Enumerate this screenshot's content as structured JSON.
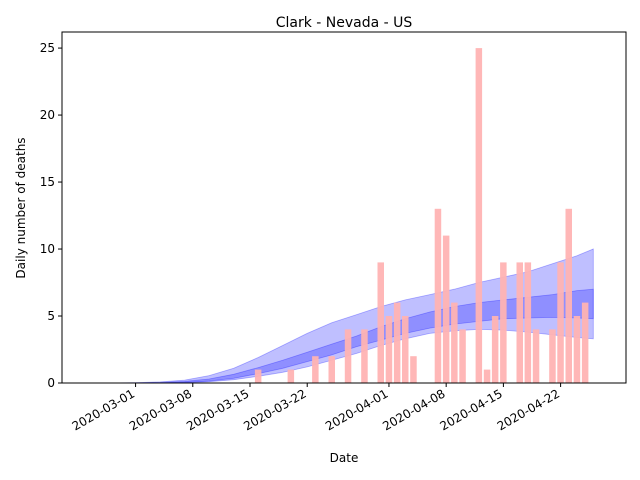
{
  "chart_data": {
    "type": "bar",
    "title": "Clark - Nevada - US",
    "xlabel": "Date",
    "ylabel": "Daily number of deaths",
    "xlim": [
      "2020-02-21",
      "2020-04-30"
    ],
    "ylim": [
      0,
      26.2
    ],
    "yticks": [
      0,
      5,
      10,
      15,
      20,
      25
    ],
    "xticks": [
      "2020-03-01",
      "2020-03-08",
      "2020-03-15",
      "2020-03-22",
      "2020-04-01",
      "2020-04-08",
      "2020-04-15",
      "2020-04-22"
    ],
    "grid": false,
    "bar_color": "#ffb3b3",
    "bars": {
      "dates": [
        "2020-03-16",
        "2020-03-20",
        "2020-03-23",
        "2020-03-25",
        "2020-03-27",
        "2020-03-29",
        "2020-03-31",
        "2020-04-01",
        "2020-04-02",
        "2020-04-03",
        "2020-04-04",
        "2020-04-07",
        "2020-04-08",
        "2020-04-09",
        "2020-04-10",
        "2020-04-12",
        "2020-04-13",
        "2020-04-14",
        "2020-04-15",
        "2020-04-17",
        "2020-04-18",
        "2020-04-19",
        "2020-04-21",
        "2020-04-22",
        "2020-04-23",
        "2020-04-24",
        "2020-04-25"
      ],
      "values": [
        1,
        1,
        2,
        2,
        4,
        4,
        9,
        5,
        6,
        5,
        2,
        13,
        11,
        6,
        4,
        25,
        1,
        5,
        9,
        9,
        9,
        4,
        4,
        9,
        13,
        5,
        6
      ]
    },
    "model": {
      "color": "#0000ff",
      "dates": [
        "2020-02-27",
        "2020-03-01",
        "2020-03-04",
        "2020-03-07",
        "2020-03-10",
        "2020-03-13",
        "2020-03-16",
        "2020-03-19",
        "2020-03-22",
        "2020-03-25",
        "2020-03-28",
        "2020-03-31",
        "2020-04-03",
        "2020-04-06",
        "2020-04-09",
        "2020-04-12",
        "2020-04-15",
        "2020-04-18",
        "2020-04-21",
        "2020-04-24",
        "2020-04-26"
      ],
      "outer_upper": [
        0,
        0.02,
        0.08,
        0.22,
        0.55,
        1.1,
        1.9,
        2.8,
        3.7,
        4.5,
        5.1,
        5.7,
        6.2,
        6.6,
        7.0,
        7.5,
        7.9,
        8.3,
        8.9,
        9.5,
        10.0
      ],
      "outer_lower": [
        0,
        0,
        0,
        0.03,
        0.1,
        0.25,
        0.5,
        0.8,
        1.2,
        1.7,
        2.2,
        2.8,
        3.3,
        3.7,
        3.9,
        4.0,
        3.95,
        3.8,
        3.6,
        3.4,
        3.3
      ],
      "inner_upper": [
        0,
        0.01,
        0.04,
        0.12,
        0.3,
        0.65,
        1.15,
        1.7,
        2.3,
        2.9,
        3.5,
        4.2,
        4.8,
        5.3,
        5.7,
        6.0,
        6.2,
        6.4,
        6.6,
        6.9,
        7.0
      ],
      "inner_lower": [
        0,
        0,
        0.01,
        0.05,
        0.15,
        0.35,
        0.7,
        1.1,
        1.6,
        2.1,
        2.7,
        3.2,
        3.7,
        4.1,
        4.4,
        4.6,
        4.8,
        4.85,
        4.9,
        4.85,
        4.8
      ]
    }
  }
}
